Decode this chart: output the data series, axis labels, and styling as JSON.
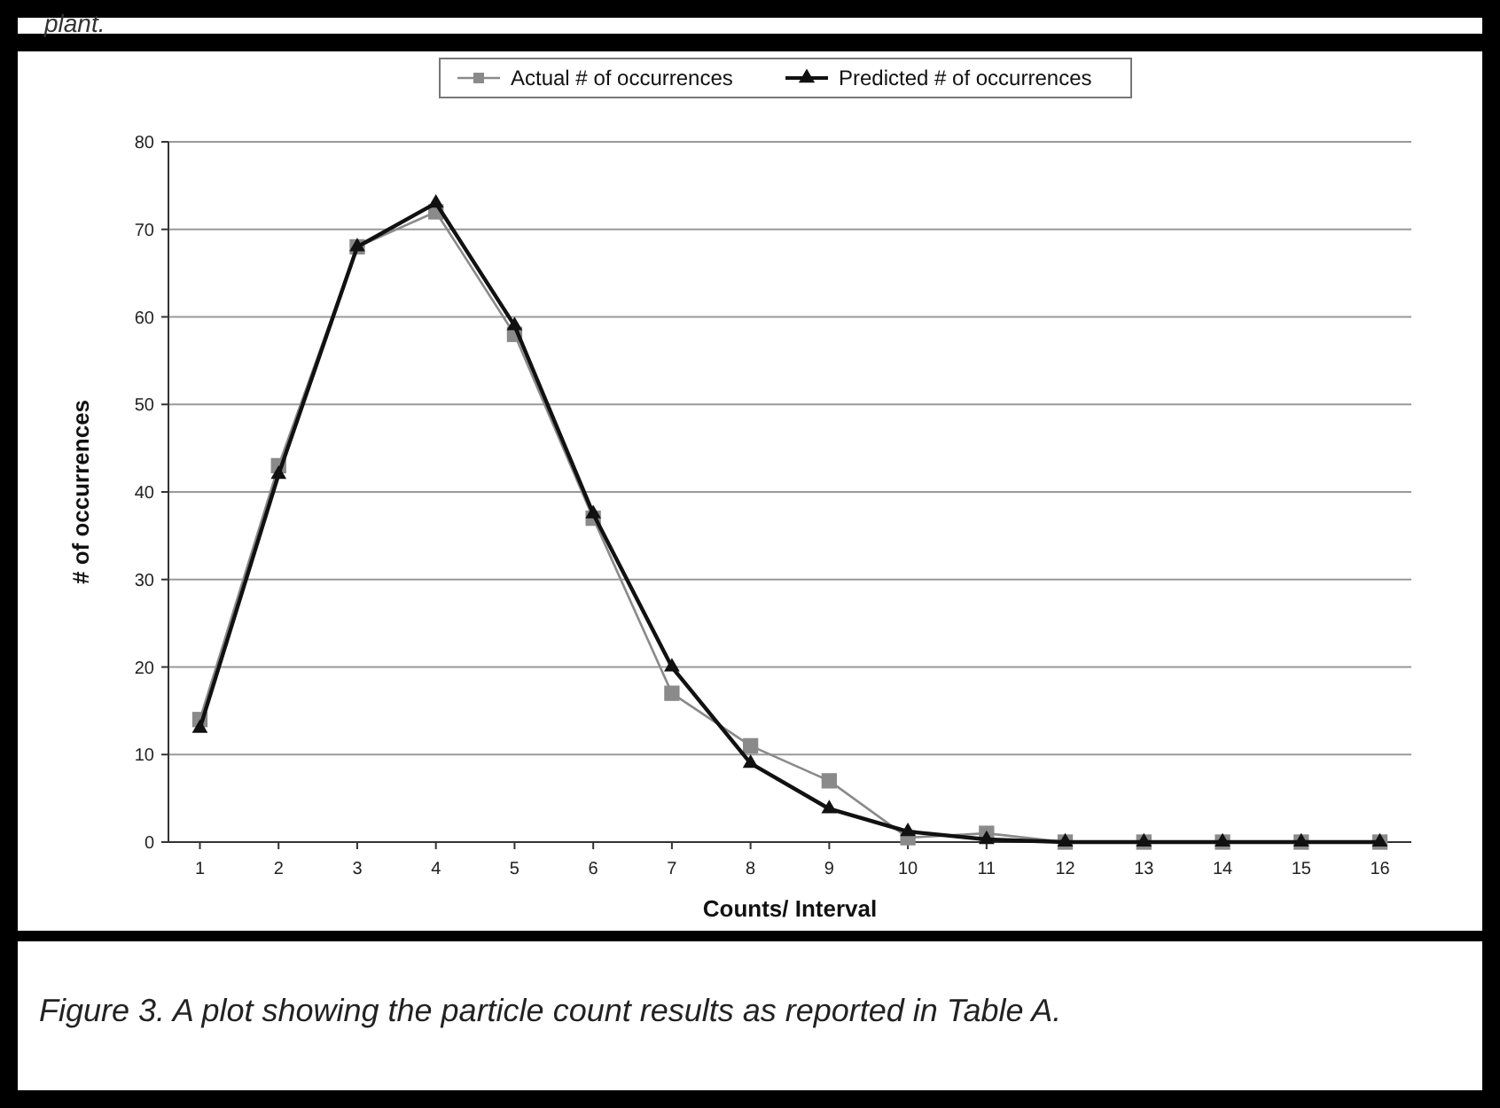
{
  "chart_data": {
    "type": "line",
    "xlabel": "Counts/ Interval",
    "ylabel": "# of occurrences",
    "x": [
      1,
      2,
      3,
      4,
      5,
      6,
      7,
      8,
      9,
      10,
      11,
      12,
      13,
      14,
      15,
      16
    ],
    "xlim": [
      0.6,
      16.4
    ],
    "xticks": [
      1,
      2,
      3,
      4,
      5,
      6,
      7,
      8,
      9,
      10,
      11,
      12,
      13,
      14,
      15,
      16
    ],
    "series": [
      {
        "name": "Actual # of occurrences",
        "color": "#8a8a8a",
        "marker": "square",
        "values": [
          14,
          43,
          68,
          72,
          58,
          37,
          17,
          11,
          7,
          0.5,
          1,
          0,
          0,
          0,
          0,
          0
        ]
      },
      {
        "name": "Predicted # of occurrences",
        "color": "#111111",
        "marker": "triangle",
        "values": [
          13,
          42,
          68,
          73,
          59,
          37.5,
          20,
          9,
          3.8,
          1.2,
          0.3,
          0,
          0,
          0,
          0,
          0
        ]
      }
    ],
    "ylim": [
      0,
      80
    ],
    "yticks": [
      0,
      10,
      20,
      30,
      40,
      50,
      60,
      70,
      80
    ],
    "grid": "y",
    "legend": "top",
    "annotations": [
      "plant.",
      "Figure 3.  A plot showing the particle count results as reported in Table A."
    ]
  }
}
